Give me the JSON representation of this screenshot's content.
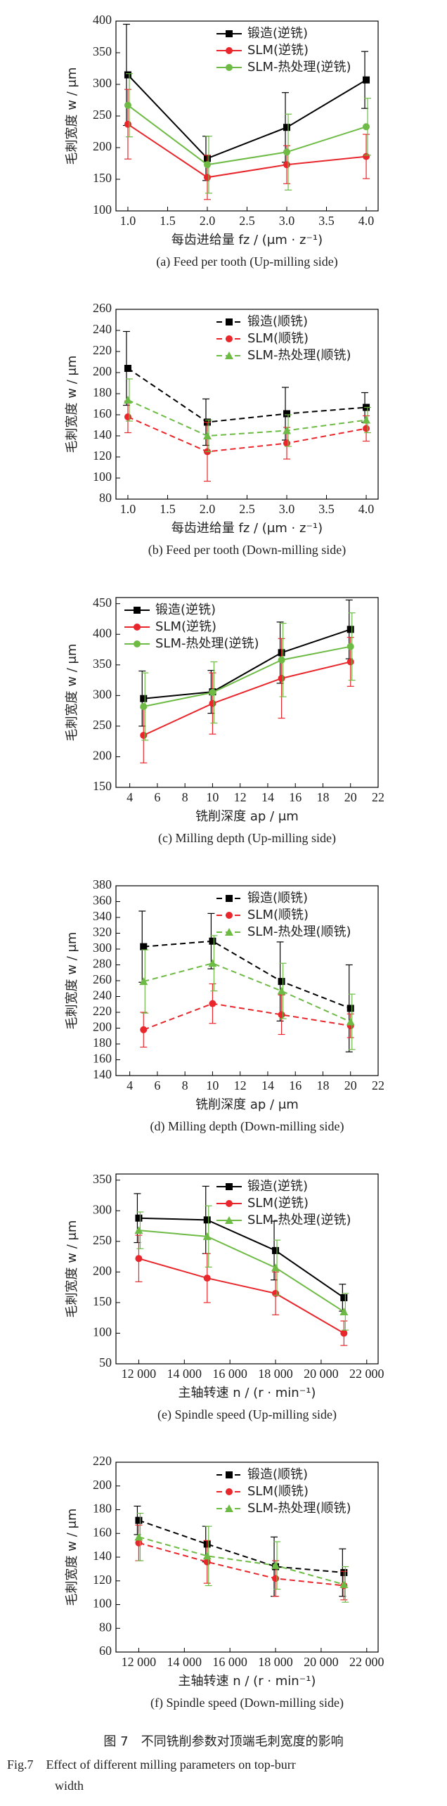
{
  "chart_data": [
    {
      "type": "line",
      "caption": "(a) Feed per tooth (Up-milling side)",
      "x_label": "每齿进给量 fz / (μm · z⁻¹)",
      "y_label": "毛刺宽度 w / μm",
      "x": [
        1,
        2,
        3,
        4
      ],
      "xlim": [
        0.85,
        4.15
      ],
      "xticks": [
        {
          "value": 1,
          "label": "1.0"
        },
        1.5,
        {
          "value": 2,
          "label": "2.0"
        },
        2.5,
        {
          "value": 3,
          "label": "3.0"
        },
        3.5,
        {
          "value": 4,
          "label": "4.0"
        }
      ],
      "ylim": [
        100,
        400
      ],
      "yticks": [
        100,
        150,
        200,
        250,
        300,
        350,
        400
      ],
      "line_style": "solid",
      "legend": "upper right",
      "series": [
        {
          "name": "锻造(逆铣)",
          "color": "#000000",
          "marker": "square",
          "values": [
            315,
            183,
            232,
            307
          ],
          "errors": [
            80,
            35,
            55,
            45
          ]
        },
        {
          "name": "SLM(逆铣)",
          "color": "#e8262b",
          "marker": "circle",
          "values": [
            237,
            153,
            173,
            186
          ],
          "errors": [
            55,
            35,
            30,
            35
          ]
        },
        {
          "name": "SLM-热处理(逆铣)",
          "color": "#6dbb45",
          "marker": "circle",
          "values": [
            267,
            173,
            193,
            233
          ],
          "errors": [
            50,
            45,
            60,
            45
          ]
        }
      ]
    },
    {
      "type": "line",
      "caption": "(b) Feed per tooth (Down-milling side)",
      "x_label": "每齿进给量 fz / (μm · z⁻¹)",
      "y_label": "毛刺宽度 w / μm",
      "x": [
        1,
        2,
        3,
        4
      ],
      "xlim": [
        0.85,
        4.15
      ],
      "xticks": [
        {
          "value": 1,
          "label": "1.0"
        },
        1.5,
        {
          "value": 2,
          "label": "2.0"
        },
        2.5,
        {
          "value": 3,
          "label": "3.0"
        },
        3.5,
        {
          "value": 4,
          "label": "4.0"
        }
      ],
      "ylim": [
        80,
        260
      ],
      "yticks": [
        80,
        100,
        120,
        140,
        160,
        180,
        200,
        220,
        240,
        260
      ],
      "line_style": "dashed",
      "legend": "upper right",
      "series": [
        {
          "name": "锻造(顺铣)",
          "color": "#000000",
          "marker": "square",
          "values": [
            204,
            153,
            161,
            167
          ],
          "errors": [
            35,
            22,
            25,
            14
          ]
        },
        {
          "name": "SLM(顺铣)",
          "color": "#e8262b",
          "marker": "circle",
          "values": [
            158,
            125,
            133,
            147
          ],
          "errors": [
            15,
            28,
            15,
            12
          ]
        },
        {
          "name": "SLM-热处理(顺铣)",
          "color": "#6dbb45",
          "marker": "triangle",
          "values": [
            174,
            140,
            145,
            155
          ],
          "errors": [
            20,
            15,
            15,
            12
          ]
        }
      ]
    },
    {
      "type": "line",
      "caption": "(c) Milling depth (Up-milling side)",
      "x_label": "铣削深度 ap / μm",
      "y_label": "毛刺宽度 w / μm",
      "x": [
        5,
        10,
        15,
        20
      ],
      "xlim": [
        3,
        22
      ],
      "xticks": [
        4,
        6,
        8,
        10,
        12,
        14,
        16,
        18,
        20,
        22
      ],
      "ylim": [
        150,
        460
      ],
      "yticks": [
        150,
        200,
        250,
        300,
        350,
        400,
        450
      ],
      "line_style": "solid",
      "legend": "upper left",
      "series": [
        {
          "name": "锻造(逆铣)",
          "color": "#000000",
          "marker": "square",
          "values": [
            295,
            306,
            370,
            408
          ],
          "errors": [
            45,
            35,
            50,
            48
          ]
        },
        {
          "name": "SLM(逆铣)",
          "color": "#e8262b",
          "marker": "circle",
          "values": [
            235,
            287,
            328,
            355
          ],
          "errors": [
            45,
            50,
            65,
            40
          ]
        },
        {
          "name": "SLM-热处理(逆铣)",
          "color": "#6dbb45",
          "marker": "circle",
          "values": [
            282,
            305,
            358,
            380
          ],
          "errors": [
            55,
            50,
            60,
            55
          ]
        }
      ]
    },
    {
      "type": "line",
      "caption": "(d) Milling depth (Down-milling side)",
      "x_label": "铣削深度 ap / μm",
      "y_label": "毛刺宽度 w / μm",
      "x": [
        5,
        10,
        15,
        20
      ],
      "xlim": [
        3,
        22
      ],
      "xticks": [
        4,
        6,
        8,
        10,
        12,
        14,
        16,
        18,
        20,
        22
      ],
      "ylim": [
        140,
        380
      ],
      "yticks": [
        140,
        160,
        180,
        200,
        220,
        240,
        260,
        280,
        300,
        320,
        340,
        360,
        380
      ],
      "line_style": "dashed",
      "legend": "upper right",
      "series": [
        {
          "name": "锻造(顺铣)",
          "color": "#000000",
          "marker": "square",
          "values": [
            303,
            310,
            259,
            225
          ],
          "errors": [
            45,
            35,
            50,
            55
          ]
        },
        {
          "name": "SLM(顺铣)",
          "color": "#e8262b",
          "marker": "circle",
          "values": [
            198,
            231,
            217,
            203
          ],
          "errors": [
            22,
            25,
            25,
            15
          ]
        },
        {
          "name": "SLM-热处理(顺铣)",
          "color": "#6dbb45",
          "marker": "triangle",
          "values": [
            259,
            282,
            247,
            208
          ],
          "errors": [
            40,
            35,
            35,
            35
          ]
        }
      ]
    },
    {
      "type": "line",
      "caption": "(e) Spindle speed (Up-milling side)",
      "x_label": "主轴转速 n / (r · min⁻¹)",
      "y_label": "毛刺宽度 w / μm",
      "x": [
        12000,
        15000,
        18000,
        21000
      ],
      "xlim": [
        11000,
        22500
      ],
      "xticks": [
        {
          "value": 12000,
          "label": "12 000"
        },
        {
          "value": 14000,
          "label": "14 000"
        },
        {
          "value": 16000,
          "label": "16 000"
        },
        {
          "value": 18000,
          "label": "18 000"
        },
        {
          "value": 20000,
          "label": "20 000"
        },
        {
          "value": 22000,
          "label": "22 000"
        }
      ],
      "ylim": [
        50,
        360
      ],
      "yticks": [
        50,
        100,
        150,
        200,
        250,
        300,
        350
      ],
      "line_style": "solid",
      "legend": "upper right",
      "series": [
        {
          "name": "锻造(逆铣)",
          "color": "#000000",
          "marker": "square",
          "values": [
            288,
            285,
            235,
            158
          ],
          "errors": [
            40,
            55,
            48,
            22
          ]
        },
        {
          "name": "SLM(逆铣)",
          "color": "#e8262b",
          "marker": "circle",
          "values": [
            222,
            190,
            165,
            100
          ],
          "errors": [
            38,
            40,
            35,
            20
          ]
        },
        {
          "name": "SLM-热处理(逆铣)",
          "color": "#6dbb45",
          "marker": "triangle",
          "values": [
            268,
            258,
            207,
            135
          ],
          "errors": [
            30,
            50,
            45,
            30
          ]
        }
      ]
    },
    {
      "type": "line",
      "caption": "(f) Spindle speed (Down-milling side)",
      "x_label": "主轴转速 n / (r · min⁻¹)",
      "y_label": "毛刺宽度 w / μm",
      "x": [
        12000,
        15000,
        18000,
        21000
      ],
      "xlim": [
        11000,
        22500
      ],
      "xticks": [
        {
          "value": 12000,
          "label": "12 000"
        },
        {
          "value": 14000,
          "label": "14 000"
        },
        {
          "value": 16000,
          "label": "16 000"
        },
        {
          "value": 18000,
          "label": "18 000"
        },
        {
          "value": 20000,
          "label": "20 000"
        },
        {
          "value": 22000,
          "label": "22 000"
        }
      ],
      "ylim": [
        60,
        220
      ],
      "yticks": [
        60,
        80,
        100,
        120,
        140,
        160,
        180,
        200,
        220
      ],
      "line_style": "dashed",
      "legend": "upper right",
      "series": [
        {
          "name": "锻造(顺铣)",
          "color": "#000000",
          "marker": "square",
          "values": [
            171,
            151,
            132,
            127
          ],
          "errors": [
            12,
            15,
            25,
            20
          ]
        },
        {
          "name": "SLM(顺铣)",
          "color": "#e8262b",
          "marker": "circle",
          "values": [
            152,
            136,
            122,
            116
          ],
          "errors": [
            15,
            18,
            15,
            12
          ]
        },
        {
          "name": "SLM-热处理(顺铣)",
          "color": "#6dbb45",
          "marker": "triangle",
          "values": [
            157,
            141,
            133,
            117
          ],
          "errors": [
            20,
            25,
            20,
            15
          ]
        }
      ]
    }
  ],
  "figure": {
    "caption_zh": "图 7　不同铣削参数对顶端毛刺宽度的影响",
    "caption_en_1": "Fig.7　Effect of different milling parameters on top-burr",
    "caption_en_2": "width"
  }
}
